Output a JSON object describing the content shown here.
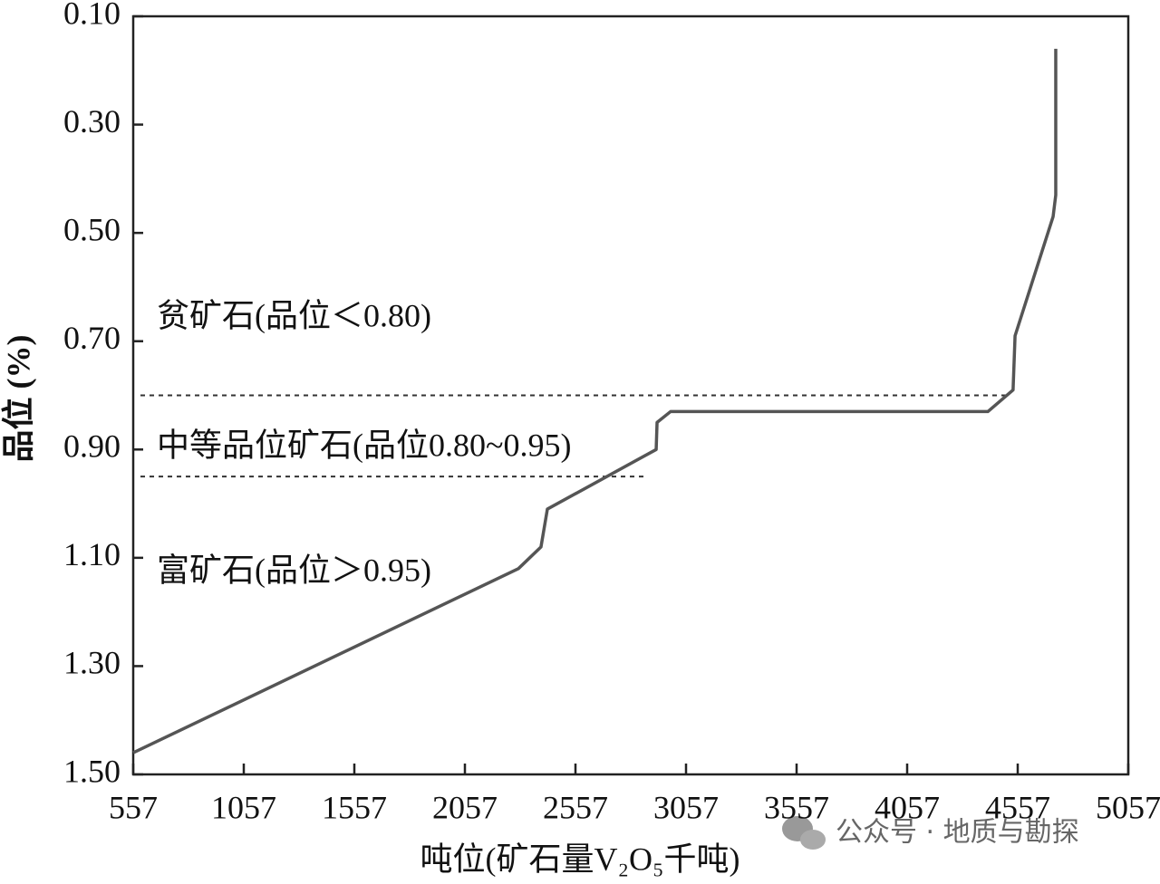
{
  "chart_data": {
    "type": "line",
    "xlabel": "吨位(矿石量V₂O₅千吨)",
    "ylabel": "品位 (%)",
    "x": [
      557,
      2299,
      2401,
      2430,
      2922,
      2926,
      2987,
      4422,
      4536,
      4545,
      4717,
      4729,
      4729
    ],
    "values": [
      1.46,
      1.12,
      1.08,
      1.01,
      0.9,
      0.85,
      0.83,
      0.83,
      0.79,
      0.69,
      0.47,
      0.43,
      0.16
    ],
    "color": "#555555",
    "xlim": [
      557,
      5057
    ],
    "xticks": [
      557,
      1057,
      1557,
      2057,
      2557,
      3057,
      3557,
      4057,
      4557,
      5057
    ],
    "ylim": [
      1.5,
      0.1
    ],
    "yticks": [
      {
        "value": 0.1,
        "label": "0.10"
      },
      {
        "value": 0.3,
        "label": "0.30"
      },
      {
        "value": 0.5,
        "label": "0.50"
      },
      {
        "value": 0.7,
        "label": "0.70"
      },
      {
        "value": 0.9,
        "label": "0.90"
      },
      {
        "value": 1.1,
        "label": "1.10"
      },
      {
        "value": 1.3,
        "label": "1.30"
      },
      {
        "value": 1.5,
        "label": "1.50"
      }
    ],
    "reference_lines": [
      0.8,
      0.95
    ],
    "annotations": [
      "贫矿石(品位＜0.80)",
      "中等品位矿石(品位0.80~0.95)",
      "富矿石(品位＞0.95)"
    ],
    "watermark": "公众号 · 地质与勘探"
  }
}
